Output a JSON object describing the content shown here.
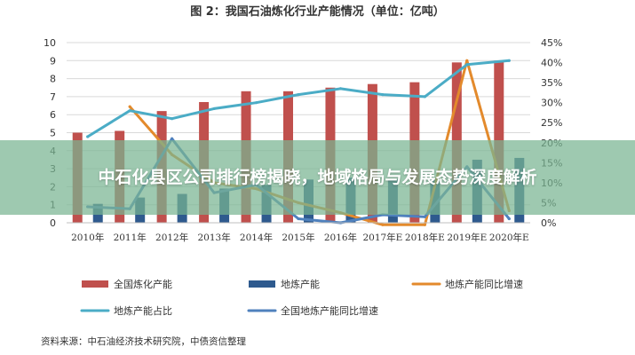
{
  "title": "图 2：我国石油炼化行业产能情况（单位：亿吨）",
  "source": "资料来源：中石油经济技术研究院，中债资信整理",
  "overlay_headline": "中石化县区公司排行榜揭晓，地域格局与发展态势深度解析",
  "chart_data": {
    "type": "bar",
    "categories": [
      "2010年",
      "2011年",
      "2012年",
      "2013年",
      "2014年",
      "2015年",
      "2016年",
      "2017年E",
      "2018年E",
      "2019年E",
      "2020年E"
    ],
    "y_left": {
      "min": 0,
      "max": 10,
      "ticks": [
        "0",
        "1",
        "2",
        "3",
        "4",
        "5",
        "6",
        "7",
        "8",
        "9",
        "10"
      ]
    },
    "y_right": {
      "min": 0,
      "max": 45,
      "ticks": [
        "0%",
        "5%",
        "10%",
        "15%",
        "20%",
        "25%",
        "30%",
        "35%",
        "40%",
        "45%"
      ]
    },
    "grid": true,
    "legend_position": "bottom",
    "series": [
      {
        "name": "全国炼化产能",
        "kind": "bar",
        "axis": "left",
        "color": "#c0504d",
        "values": [
          5.0,
          5.1,
          6.2,
          6.7,
          7.3,
          7.3,
          7.5,
          7.7,
          7.8,
          8.9,
          9.0
        ]
      },
      {
        "name": "地炼产能",
        "kind": "bar",
        "axis": "left",
        "color": "#2e5a8e",
        "values": [
          1.05,
          1.4,
          1.6,
          1.9,
          2.1,
          2.4,
          2.5,
          2.4,
          2.45,
          3.5,
          3.6
        ]
      },
      {
        "name": "地炼产能同比增速",
        "kind": "line",
        "axis": "right",
        "color": "#e38a2c",
        "values": [
          null,
          29,
          17,
          10,
          8.5,
          5,
          2.5,
          -0.5,
          -0.5,
          40.5,
          3
        ]
      },
      {
        "name": "地炼产能占比",
        "kind": "line",
        "axis": "right",
        "color": "#4bacc6",
        "values": [
          21.5,
          28,
          26,
          28.5,
          30,
          32,
          33.5,
          32,
          31.5,
          39.5,
          40.5
        ]
      },
      {
        "name": "全国地炼产能同比增速",
        "kind": "line",
        "axis": "right",
        "color": "#4f81bd",
        "values": [
          4,
          3.5,
          21,
          7.5,
          9.5,
          1,
          0,
          2,
          1.5,
          14,
          1
        ]
      }
    ]
  }
}
